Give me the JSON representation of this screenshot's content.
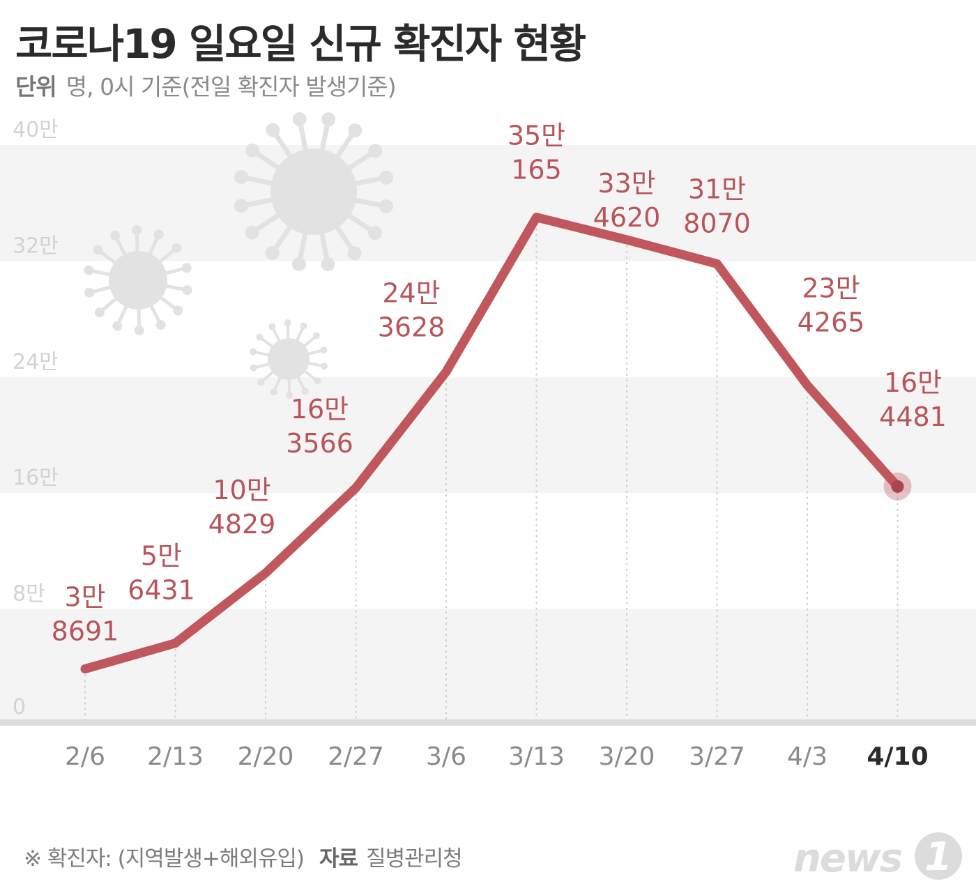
{
  "title": "코로나19 일요일 신규 확진자 현황",
  "unit_label": "단위",
  "unit_text": "명, 0시 기준(전일 확진자 발생기준)",
  "footer": {
    "note": "※ 확진자: (지역발생+해외유입)",
    "source_label": "자료",
    "source_value": "질병관리청"
  },
  "logo": {
    "text": "news",
    "badge": "1"
  },
  "colors": {
    "line": "#c0575c",
    "label": "#b8555a",
    "band": "#f4f4f4",
    "axis_text": "#d2d2d2",
    "virus": "#e2e2e2"
  },
  "icons": [
    "virus-icon"
  ],
  "chart_data": {
    "type": "line",
    "categories": [
      "2/6",
      "2/13",
      "2/20",
      "2/27",
      "3/6",
      "3/13",
      "3/20",
      "3/27",
      "4/3",
      "4/10"
    ],
    "highlight_category": "4/10",
    "values": [
      38691,
      56431,
      104829,
      163566,
      243628,
      350165,
      334620,
      318070,
      234265,
      164481
    ],
    "value_labels": [
      [
        "3만",
        "8691"
      ],
      [
        "5만",
        "6431"
      ],
      [
        "10만",
        "4829"
      ],
      [
        "16만",
        "3566"
      ],
      [
        "24만",
        "3628"
      ],
      [
        "35만",
        "165"
      ],
      [
        "33만",
        "4620"
      ],
      [
        "31만",
        "8070"
      ],
      [
        "23만",
        "4265"
      ],
      [
        "16만",
        "4481"
      ]
    ],
    "y_ticks": [
      0,
      80000,
      160000,
      240000,
      320000,
      400000
    ],
    "y_tick_labels": [
      "0",
      "8만",
      "16만",
      "24만",
      "32만",
      "40만"
    ],
    "ylim": [
      0,
      400000
    ],
    "grid": "alternating-bands",
    "legend": "none"
  }
}
